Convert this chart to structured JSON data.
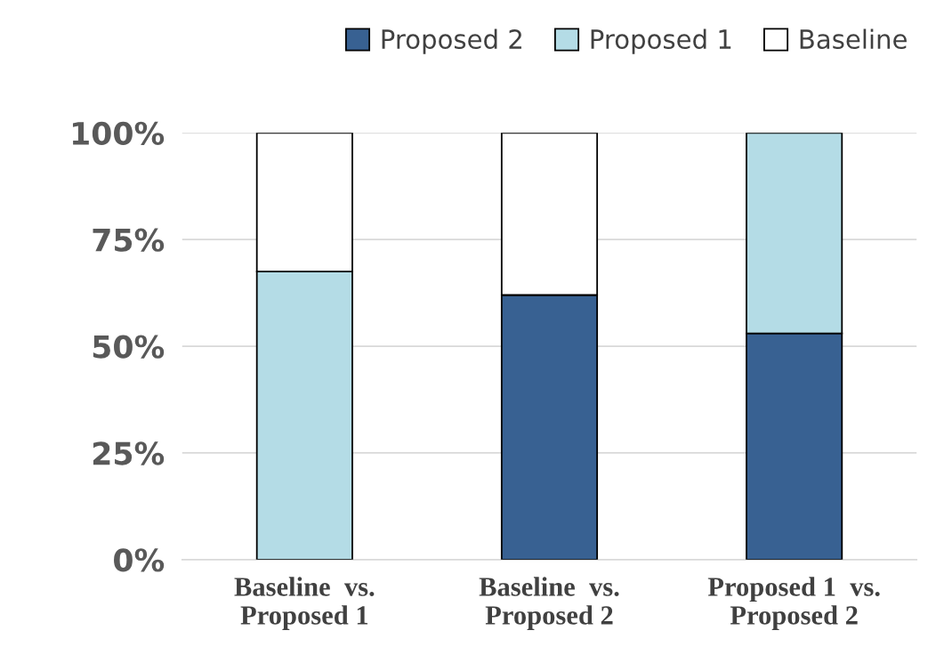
{
  "chart_data": {
    "type": "bar",
    "stacked": true,
    "categories": [
      "Baseline  vs.\nProposed 1",
      "Baseline  vs.\nProposed 2",
      "Proposed 1  vs.\nProposed 2"
    ],
    "series": [
      {
        "name": "Proposed 2",
        "color": "#386192",
        "values": [
          null,
          62,
          53
        ]
      },
      {
        "name": "Proposed 1",
        "color": "#b4dce6",
        "values": [
          67.5,
          null,
          47
        ]
      },
      {
        "name": "Baseline",
        "color": "#ffffff",
        "values": [
          32.5,
          38,
          null
        ]
      }
    ],
    "ylim": [
      0,
      100
    ],
    "yticks": [
      {
        "value": 0,
        "label": "0%"
      },
      {
        "value": 25,
        "label": "25%"
      },
      {
        "value": 50,
        "label": "50%"
      },
      {
        "value": 75,
        "label": "75%"
      },
      {
        "value": 100,
        "label": "100%"
      }
    ],
    "grid": "y",
    "legend": "top"
  }
}
